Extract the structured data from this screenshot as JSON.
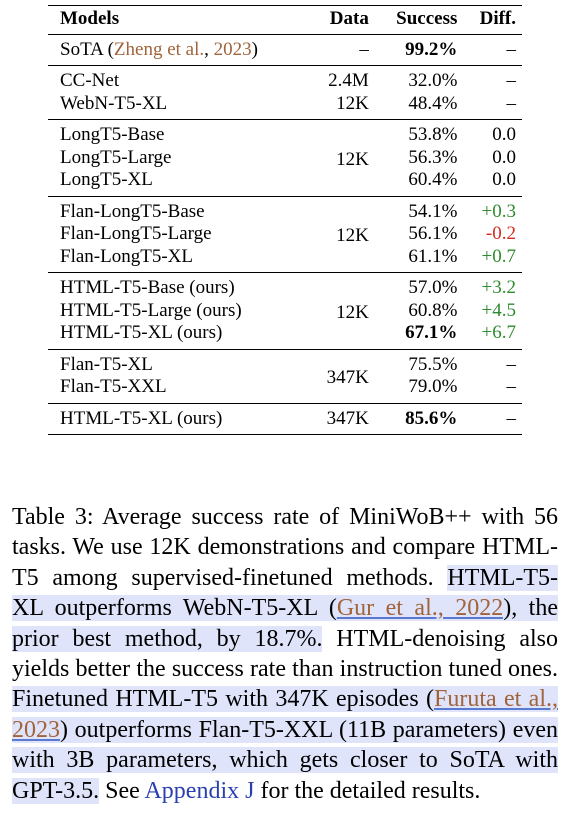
{
  "table": {
    "header": [
      "Models",
      "Data",
      "Success",
      "Diff."
    ],
    "groups": [
      {
        "rows": [
          {
            "model": [
              {
                "text": "SoTA ("
              },
              {
                "text": "Zheng et al.",
                "style": "cite"
              },
              {
                "text": ", "
              },
              {
                "text": "2023",
                "style": "cite"
              },
              {
                "text": ")"
              }
            ],
            "data": "–",
            "success": "99.2%",
            "success_bold": true,
            "diff": "–"
          }
        ]
      },
      {
        "rows": [
          {
            "model": "CC-Net",
            "data": "2.4M",
            "success": "32.0%",
            "diff": "–"
          },
          {
            "model": "WebN-T5-XL",
            "data": "12K",
            "success": "48.4%",
            "diff": "–"
          }
        ]
      },
      {
        "data": "12K",
        "rows": [
          {
            "model": "LongT5-Base",
            "success": "53.8%",
            "diff": "0.0"
          },
          {
            "model": "LongT5-Large",
            "success": "56.3%",
            "diff": "0.0"
          },
          {
            "model": "LongT5-XL",
            "success": "60.4%",
            "diff": "0.0"
          }
        ]
      },
      {
        "data": "12K",
        "rows": [
          {
            "model": "Flan-LongT5-Base",
            "success": "54.1%",
            "diff": "+0.3",
            "diff_color": "#2e8b2e"
          },
          {
            "model": "Flan-LongT5-Large",
            "success": "56.1%",
            "diff": "-0.2",
            "diff_color": "#d42a1e"
          },
          {
            "model": "Flan-LongT5-XL",
            "success": "61.1%",
            "diff": "+0.7",
            "diff_color": "#2e8b2e"
          }
        ]
      },
      {
        "data": "12K",
        "rows": [
          {
            "model": "HTML-T5-Base (ours)",
            "success": "57.0%",
            "diff": "+3.2",
            "diff_color": "#2e8b2e"
          },
          {
            "model": "HTML-T5-Large (ours)",
            "success": "60.8%",
            "diff": "+4.5",
            "diff_color": "#2e8b2e"
          },
          {
            "model": "HTML-T5-XL (ours)",
            "success": "67.1%",
            "success_bold": true,
            "diff": "+6.7",
            "diff_color": "#2e8b2e"
          }
        ]
      },
      {
        "data": "347K",
        "rows": [
          {
            "model": "Flan-T5-XL",
            "success": "75.5%",
            "diff": "–"
          },
          {
            "model": "Flan-T5-XXL",
            "success": "79.0%",
            "diff": "–"
          }
        ]
      },
      {
        "rows": [
          {
            "model": "HTML-T5-XL (ours)",
            "data": "347K",
            "success": "85.6%",
            "success_bold": true,
            "diff": "–"
          }
        ]
      }
    ]
  },
  "caption": {
    "segments": [
      {
        "text": "Table 3: Average success rate of MiniWoB++ with 56 tasks. We use 12K demonstrations and compare HTML-T5 among supervised-finetuned methods. ",
        "style": "plain"
      },
      {
        "text": "HTML-T5-XL outperforms WebN-T5-XL (",
        "style": "hl"
      },
      {
        "text": "Gur et al., 2022",
        "style": "hl-cite"
      },
      {
        "text": "), the prior best method, by 18.7%.",
        "style": "hl"
      },
      {
        "text": " HTML-denoising also yields better the success rate than instruction tuned ones. ",
        "style": "plain"
      },
      {
        "text": "Finetuned HTML-T5 with 347K episodes (",
        "style": "hl"
      },
      {
        "text": "Furuta et al., 2023",
        "style": "hl-cite"
      },
      {
        "text": ") outperforms Flan-T5-XXL (11B parameters) even with 3B parameters, which gets closer to SoTA with GPT-3.5.",
        "style": "hl"
      },
      {
        "text": " See ",
        "style": "plain"
      },
      {
        "text": "Appendix J",
        "style": "link"
      },
      {
        "text": " for the detailed results.",
        "style": "plain"
      }
    ]
  }
}
